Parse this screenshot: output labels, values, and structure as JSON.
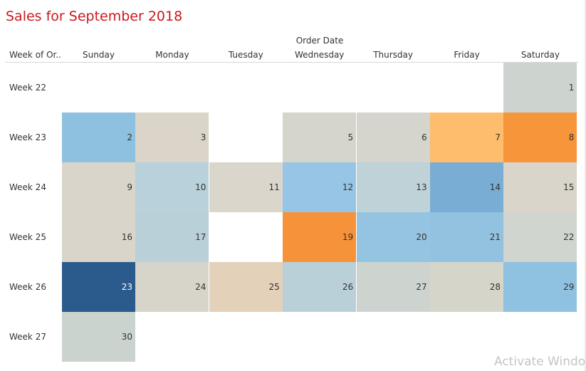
{
  "title": "Sales for September 2018",
  "watermark": "Activate Windo",
  "chart_data": {
    "type": "heatmap",
    "title": "Sales for September 2018",
    "column_group_label": "Order Date",
    "row_axis_label": "Week of Or..",
    "columns": [
      "Sunday",
      "Monday",
      "Tuesday",
      "Wednesday",
      "Thursday",
      "Friday",
      "Saturday"
    ],
    "rows": [
      "Week 22",
      "Week 23",
      "Week 24",
      "Week 25",
      "Week 26",
      "Week 27"
    ],
    "cells": [
      {
        "week": "Week 22",
        "day": "Saturday",
        "label": "1",
        "color": "#cdd4cf"
      },
      {
        "week": "Week 23",
        "day": "Sunday",
        "label": "2",
        "color": "#8ec0e0"
      },
      {
        "week": "Week 23",
        "day": "Monday",
        "label": "3",
        "color": "#dbd4c8"
      },
      {
        "week": "Week 23",
        "day": "Wednesday",
        "label": "5",
        "color": "#d6d5cb"
      },
      {
        "week": "Week 23",
        "day": "Thursday",
        "label": "6",
        "color": "#d5d5cd"
      },
      {
        "week": "Week 23",
        "day": "Friday",
        "label": "7",
        "color": "#fdbd6c"
      },
      {
        "week": "Week 23",
        "day": "Saturday",
        "label": "8",
        "color": "#f7953a"
      },
      {
        "week": "Week 24",
        "day": "Sunday",
        "label": "9",
        "color": "#d9d5cb"
      },
      {
        "week": "Week 24",
        "day": "Monday",
        "label": "10",
        "color": "#b8d1da"
      },
      {
        "week": "Week 24",
        "day": "Tuesday",
        "label": "11",
        "color": "#dbd6cc"
      },
      {
        "week": "Week 24",
        "day": "Wednesday",
        "label": "12",
        "color": "#97c5e6"
      },
      {
        "week": "Week 24",
        "day": "Thursday",
        "label": "13",
        "color": "#bed2d8"
      },
      {
        "week": "Week 24",
        "day": "Friday",
        "label": "14",
        "color": "#79add4"
      },
      {
        "week": "Week 24",
        "day": "Saturday",
        "label": "15",
        "color": "#d9d5cb"
      },
      {
        "week": "Week 25",
        "day": "Sunday",
        "label": "16",
        "color": "#d9d5ca"
      },
      {
        "week": "Week 25",
        "day": "Monday",
        "label": "17",
        "color": "#b9d0d8"
      },
      {
        "week": "Week 25",
        "day": "Wednesday",
        "label": "19",
        "color": "#f6923a"
      },
      {
        "week": "Week 25",
        "day": "Thursday",
        "label": "20",
        "color": "#95c4e2"
      },
      {
        "week": "Week 25",
        "day": "Friday",
        "label": "21",
        "color": "#92c2e0"
      },
      {
        "week": "Week 25",
        "day": "Saturday",
        "label": "22",
        "color": "#d1d5cf"
      },
      {
        "week": "Week 26",
        "day": "Sunday",
        "label": "23",
        "color": "#2b5b8c",
        "dark": true
      },
      {
        "week": "Week 26",
        "day": "Monday",
        "label": "24",
        "color": "#d7d5ca"
      },
      {
        "week": "Week 26",
        "day": "Tuesday",
        "label": "25",
        "color": "#e4d1ba"
      },
      {
        "week": "Week 26",
        "day": "Wednesday",
        "label": "26",
        "color": "#bad0d8"
      },
      {
        "week": "Week 26",
        "day": "Thursday",
        "label": "27",
        "color": "#cdd4cf"
      },
      {
        "week": "Week 26",
        "day": "Friday",
        "label": "28",
        "color": "#d6d5ca"
      },
      {
        "week": "Week 26",
        "day": "Saturday",
        "label": "29",
        "color": "#8fc1e1"
      },
      {
        "week": "Week 27",
        "day": "Sunday",
        "label": "30",
        "color": "#cbd3cf"
      }
    ]
  }
}
